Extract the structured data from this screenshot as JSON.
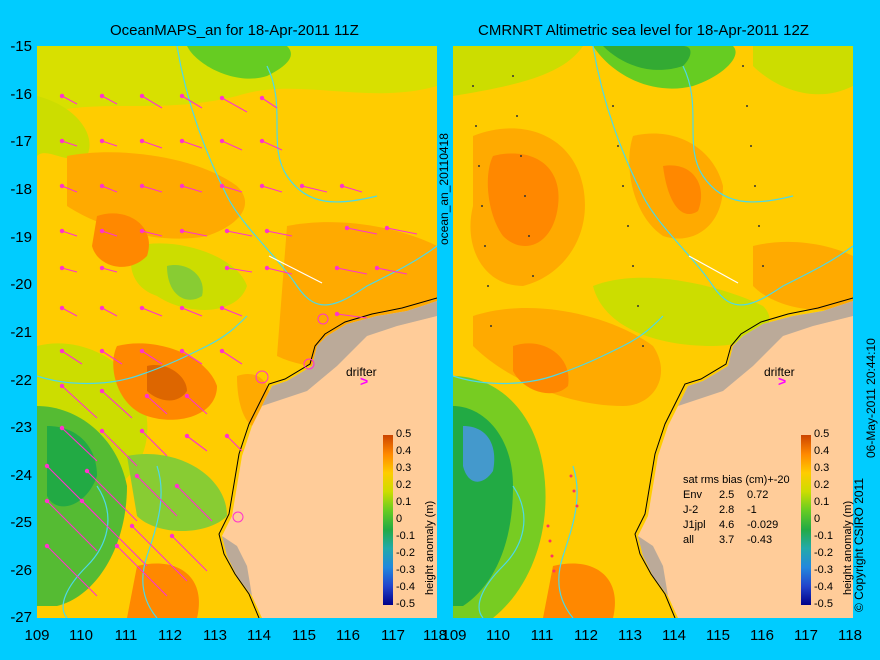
{
  "figure": {
    "left_title": "OceanMAPS_an for 18-Apr-2011 11Z",
    "right_title": "CMRNRT Altimetric sea level  for 18-Apr-2011 12Z",
    "middle_label": "ocean_an_20110418",
    "right_label": "06-May-2011 20:44:10",
    "copyright": "© Copyright CSIRO 2011"
  },
  "axes": {
    "y_ticks": [
      "-15",
      "-16",
      "-17",
      "-18",
      "-19",
      "-20",
      "-21",
      "-22",
      "-23",
      "-24",
      "-25",
      "-26",
      "-27"
    ],
    "x_ticks": [
      "109",
      "110",
      "111",
      "112",
      "113",
      "114",
      "115",
      "116",
      "117",
      "118"
    ]
  },
  "colorbar": {
    "title": "height anomaly (m)",
    "ticks": [
      "0.5",
      "0.4",
      "0.3",
      "0.2",
      "0.1",
      "0",
      "-0.1",
      "-0.2",
      "-0.3",
      "-0.4",
      "-0.5"
    ]
  },
  "drifter_label": "drifter",
  "stats": {
    "header": "sat rms bias (cm)+-20",
    "rows": [
      {
        "name": "Env",
        "rms": "2.5",
        "bias": "0.72"
      },
      {
        "name": "J-2",
        "rms": "2.8",
        "bias": "-1"
      },
      {
        "name": "J1jpl",
        "rms": "4.6",
        "bias": "-0.029"
      },
      {
        "name": "all",
        "rms": "3.7",
        "bias": "-0.43"
      }
    ]
  },
  "colors": {
    "background": "#00ccff",
    "land": "#ffcc99",
    "coast_contour": "#4dd9e6",
    "vectors": "#ff33cc",
    "sla_high": "#cc4400",
    "sla_mid": "#ffcc00",
    "sla_low": "#00aa00"
  },
  "chart_data": {
    "type": "heatmap",
    "title": "OceanMAPS_an / CMRNRT Altimetric sea level, 18-Apr-2011",
    "xlabel": "",
    "ylabel": "",
    "xlim": [
      109,
      118
    ],
    "ylim": [
      -27,
      -15
    ],
    "colorbar": {
      "label": "height anomaly (m)",
      "range": [
        -0.5,
        0.5
      ]
    }
  }
}
